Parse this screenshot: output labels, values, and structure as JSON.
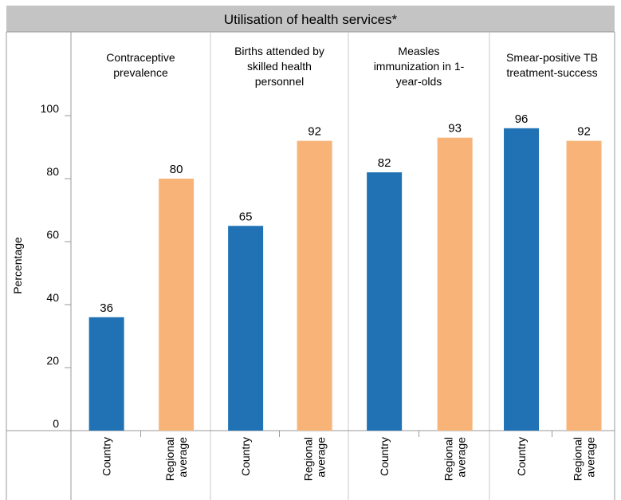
{
  "chart_data": {
    "type": "bar",
    "title": "Utilisation of health services*",
    "ylabel": "Percentage",
    "ylim": [
      0,
      100
    ],
    "yticks": [
      0,
      20,
      40,
      60,
      80,
      100
    ],
    "bar_categories": [
      "Country",
      "Regional average"
    ],
    "panels": [
      {
        "label": "Contraceptive prevalence",
        "label_lines": [
          "Contraceptive",
          "prevalence"
        ],
        "values": [
          36,
          80
        ]
      },
      {
        "label": "Births attended by skilled health personnel",
        "label_lines": [
          "Births attended by",
          "skilled health",
          "personnel"
        ],
        "values": [
          65,
          92
        ]
      },
      {
        "label": "Measles immunization in 1-year-olds",
        "label_lines": [
          "Measles",
          "immunization in 1-",
          "year-olds"
        ],
        "values": [
          82,
          93
        ]
      },
      {
        "label": "Smear-positive TB treatment-success",
        "label_lines": [
          "Smear-positive TB",
          "treatment-success"
        ],
        "values": [
          96,
          92
        ]
      }
    ],
    "category_label_lines": [
      [
        "Country"
      ],
      [
        "Regional",
        "average"
      ]
    ],
    "colors": {
      "country": "#2072b4",
      "regional": "#f8b478",
      "title_band": "#c4c4c4"
    },
    "grid": false,
    "legend": "none"
  }
}
